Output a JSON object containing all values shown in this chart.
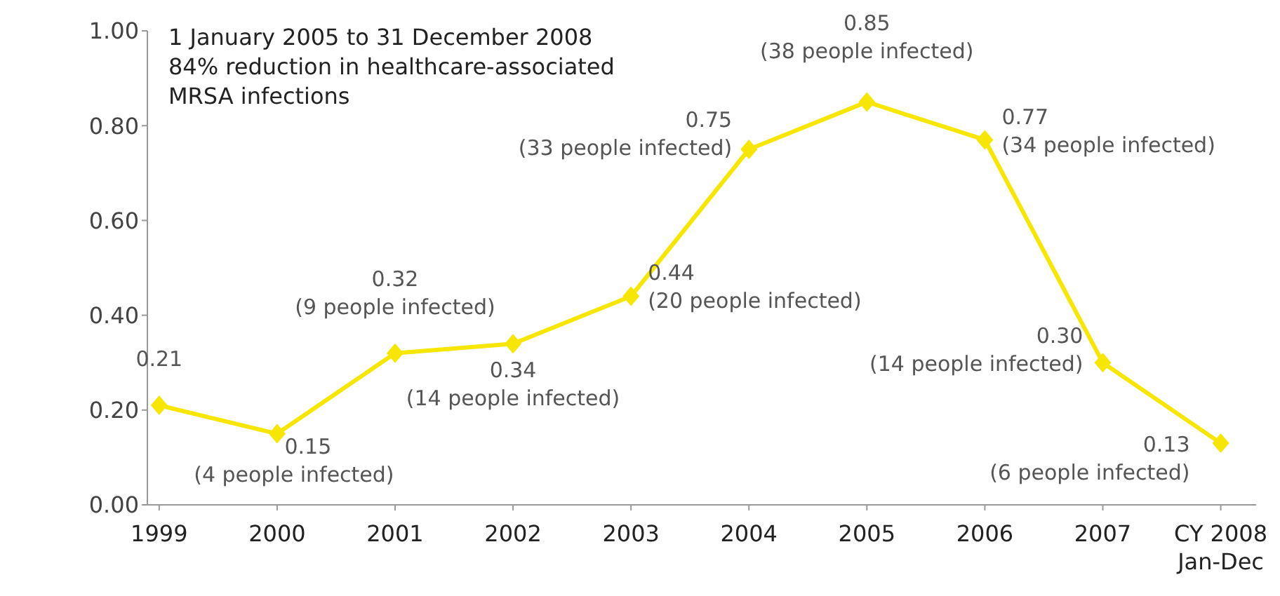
{
  "chart_data": {
    "type": "line",
    "categories": [
      "1999",
      "2000",
      "2001",
      "2002",
      "2003",
      "2004",
      "2005",
      "2006",
      "2007",
      "CY 2008\nJan-Dec"
    ],
    "series": [
      {
        "color": "#f7e600",
        "values": [
          0.21,
          0.15,
          0.32,
          0.34,
          0.44,
          0.75,
          0.85,
          0.77,
          0.3,
          0.13
        ],
        "value_labels": [
          "0.21",
          "0.15\n(4 people infected)",
          "0.32\n(9 people infected)",
          "0.34\n(14 people infected)",
          "0.44\n(20 people infected)",
          "0.75\n(33 people infected)",
          "0.85\n(38 people infected)",
          "0.77\n(34 people infected)",
          "0.30\n(14 people infected)",
          "0.13\n(6 people infected)"
        ]
      }
    ],
    "ylim": [
      0,
      1
    ],
    "yticks": [
      {
        "value": 0,
        "label": "0.00"
      },
      {
        "value": 0.2,
        "label": "0.20"
      },
      {
        "value": 0.4,
        "label": "0.40"
      },
      {
        "value": 0.6,
        "label": "0.60"
      },
      {
        "value": 0.8,
        "label": "0.80"
      },
      {
        "value": 1,
        "label": "1.00"
      }
    ],
    "annotations": [
      "1 January 2005 to 31 December 2008\n84% reduction in healthcare-associated\nMRSA infections"
    ],
    "marker": "diamond",
    "line_style": "solid",
    "grid": false,
    "legend": false
  }
}
